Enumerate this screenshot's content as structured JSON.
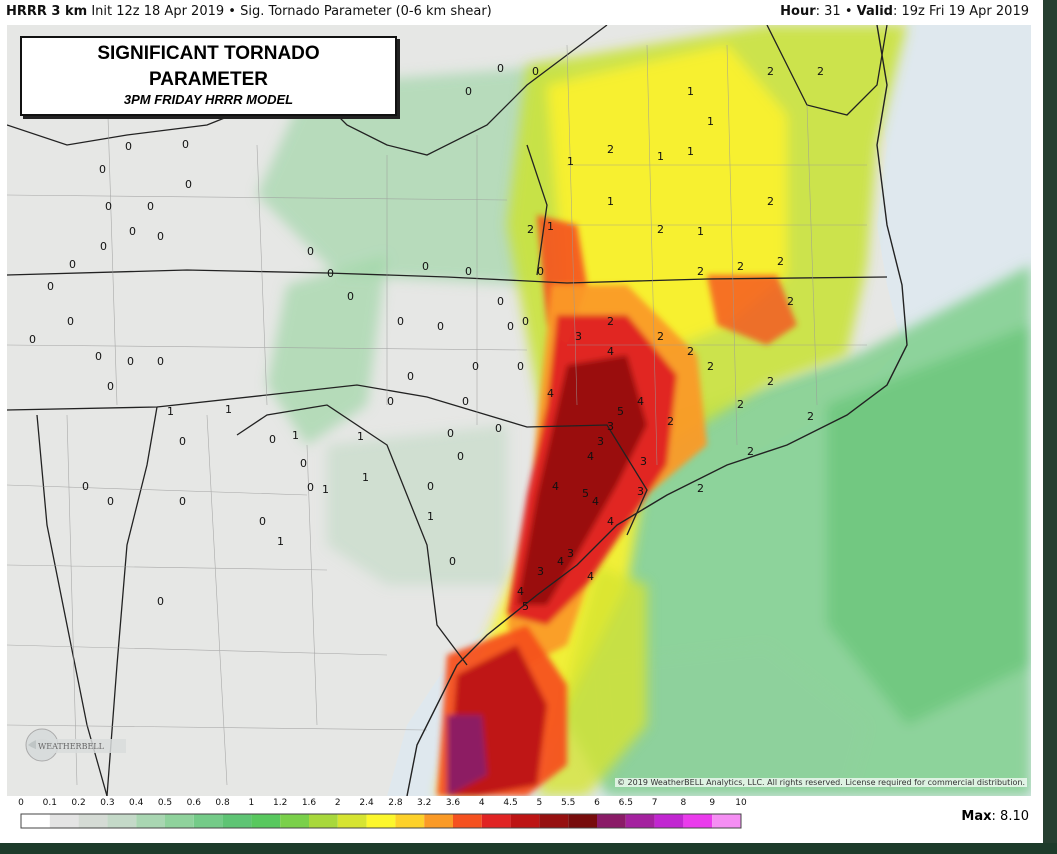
{
  "header": {
    "model": "HRRR 3 km",
    "init": "Init 12z 18 Apr 2019",
    "separator": "•",
    "product": "Sig. Tornado Parameter (0-6 km shear)",
    "hour_label": "Hour",
    "hour_value": ": 31",
    "valid_label": "Valid",
    "valid_value": ": 19z Fri 19 Apr 2019"
  },
  "title_box": {
    "line1": "SIGNIFICANT TORNADO",
    "line2": "PARAMETER",
    "line3": "3PM FRIDAY HRRR MODEL"
  },
  "copyright": "© 2019 WeatherBELL Analytics, LLC. All rights reserved. License required for commercial distribution.",
  "logo_text": "WEATHERBELL",
  "max": {
    "label": "Max",
    "value": ": 8.10"
  },
  "colorbar": {
    "ticks": [
      "0",
      "0.1",
      "0.2",
      "0.3",
      "0.4",
      "0.5",
      "0.6",
      "0.8",
      "1",
      "1.2",
      "1.6",
      "2",
      "2.4",
      "2.8",
      "3.2",
      "3.6",
      "4",
      "4.5",
      "5",
      "5.5",
      "6",
      "6.5",
      "7",
      "8",
      "9",
      "10"
    ],
    "colors": [
      "#ffffff",
      "#e4e4e4",
      "#d5dbd5",
      "#c4d9c8",
      "#a9d6b2",
      "#8fd29c",
      "#74cb88",
      "#5ec474",
      "#58c85e",
      "#7ad04a",
      "#a8d83c",
      "#d6e431",
      "#fcf72c",
      "#fdd12a",
      "#fa9a26",
      "#f5511f",
      "#e02323",
      "#bd1414",
      "#961010",
      "#770c0c",
      "#8a1b67",
      "#a4219f",
      "#c126d1",
      "#ea3bec",
      "#f58ef3"
    ]
  },
  "map": {
    "values": [
      {
        "t": "0"
      },
      {
        "t": "0"
      },
      {
        "t": "0"
      },
      {
        "t": "0"
      },
      {
        "t": "0"
      },
      {
        "t": "0"
      },
      {
        "t": "0"
      },
      {
        "t": "0"
      },
      {
        "t": "0"
      },
      {
        "t": "0"
      },
      {
        "t": "0"
      },
      {
        "t": "0"
      },
      {
        "t": "0"
      },
      {
        "t": "0"
      },
      {
        "t": "0"
      },
      {
        "t": "0"
      },
      {
        "t": "0"
      },
      {
        "t": "0"
      },
      {
        "t": "0"
      },
      {
        "t": "0"
      },
      {
        "t": "0"
      },
      {
        "t": "0"
      },
      {
        "t": "0"
      },
      {
        "t": "0"
      },
      {
        "t": "0"
      },
      {
        "t": "0"
      },
      {
        "t": "0"
      },
      {
        "t": "0"
      },
      {
        "t": "0"
      },
      {
        "t": "0"
      },
      {
        "t": "0"
      },
      {
        "t": "0"
      },
      {
        "t": "0"
      },
      {
        "t": "0"
      },
      {
        "t": "0"
      },
      {
        "t": "0"
      },
      {
        "t": "0"
      },
      {
        "t": "0"
      },
      {
        "t": "0"
      },
      {
        "t": "0"
      },
      {
        "t": "0"
      },
      {
        "t": "0"
      },
      {
        "t": "0"
      },
      {
        "t": "0"
      },
      {
        "t": "0"
      },
      {
        "t": "0"
      },
      {
        "t": "0"
      },
      {
        "t": "0"
      },
      {
        "t": "0"
      },
      {
        "t": "0"
      },
      {
        "t": "1"
      },
      {
        "t": "1"
      },
      {
        "t": "1"
      },
      {
        "t": "1"
      },
      {
        "t": "1"
      },
      {
        "t": "1"
      },
      {
        "t": "1"
      },
      {
        "t": "1"
      },
      {
        "t": "1"
      },
      {
        "t": "1"
      },
      {
        "t": "1"
      },
      {
        "t": "1"
      },
      {
        "t": "1"
      },
      {
        "t": "1"
      },
      {
        "t": "1"
      },
      {
        "t": "1"
      },
      {
        "t": "2"
      },
      {
        "t": "2"
      },
      {
        "t": "2"
      },
      {
        "t": "2"
      },
      {
        "t": "2"
      },
      {
        "t": "2"
      },
      {
        "t": "2"
      },
      {
        "t": "2"
      },
      {
        "t": "2"
      },
      {
        "t": "2"
      },
      {
        "t": "2"
      },
      {
        "t": "2"
      },
      {
        "t": "2"
      },
      {
        "t": "2"
      },
      {
        "t": "2"
      },
      {
        "t": "2"
      },
      {
        "t": "2"
      },
      {
        "t": "2"
      },
      {
        "t": "2"
      },
      {
        "t": "2"
      },
      {
        "t": "3"
      },
      {
        "t": "3"
      },
      {
        "t": "3"
      },
      {
        "t": "3"
      },
      {
        "t": "3"
      },
      {
        "t": "3"
      },
      {
        "t": "3"
      },
      {
        "t": "4"
      },
      {
        "t": "4"
      },
      {
        "t": "4"
      },
      {
        "t": "4"
      },
      {
        "t": "4"
      },
      {
        "t": "4"
      },
      {
        "t": "4"
      },
      {
        "t": "4"
      },
      {
        "t": "4"
      },
      {
        "t": "4"
      },
      {
        "t": "5"
      },
      {
        "t": "5"
      },
      {
        "t": "5"
      }
    ]
  }
}
